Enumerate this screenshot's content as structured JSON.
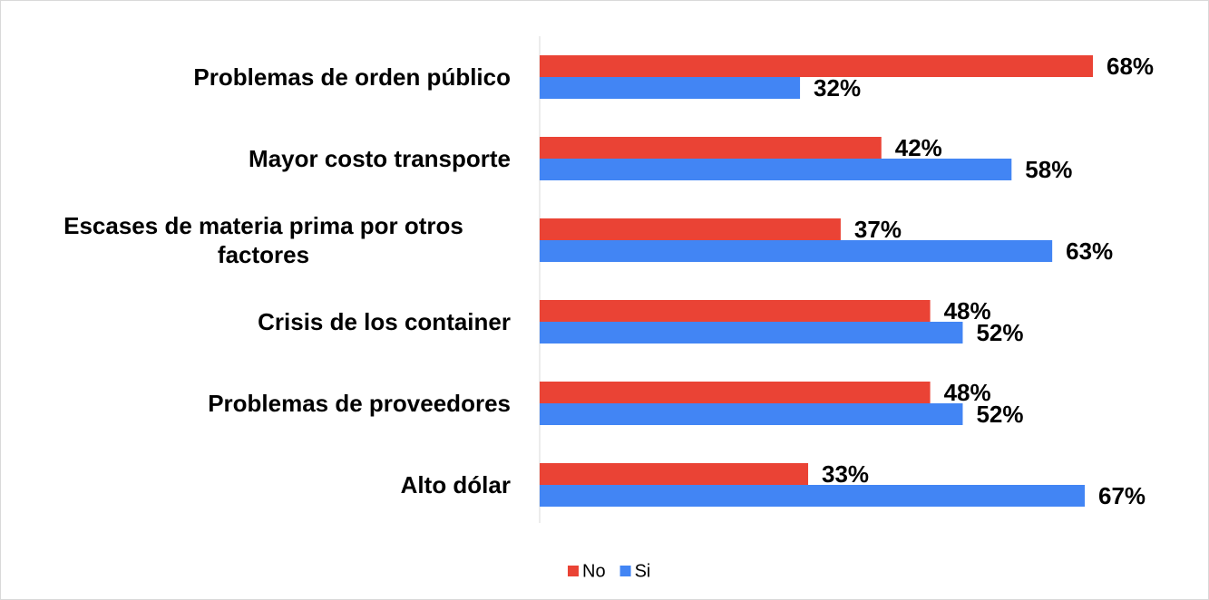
{
  "chart_data": {
    "type": "barh",
    "categories": [
      "Problemas de orden público",
      "Mayor costo transporte",
      "Escases de materia prima por otros factores",
      "Crisis de los container",
      "Problemas de proveedores",
      "Alto dólar"
    ],
    "series": [
      {
        "name": "No",
        "color": "#ea4335",
        "values": [
          68,
          42,
          37,
          48,
          48,
          33
        ],
        "value_labels": [
          "68%",
          "42%",
          "37%",
          "48%",
          "48%",
          "33%"
        ]
      },
      {
        "name": "Si",
        "color": "#4285f4",
        "values": [
          32,
          58,
          63,
          52,
          52,
          67
        ],
        "value_labels": [
          "32%",
          "58%",
          "63%",
          "52%",
          "52%",
          "67%"
        ]
      }
    ]
  }
}
